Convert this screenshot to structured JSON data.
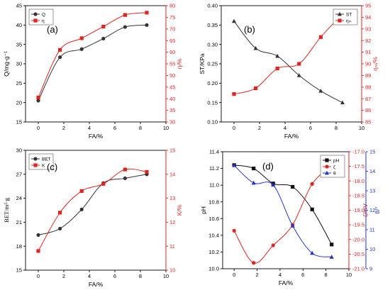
{
  "chart_data": [
    {
      "type": "line",
      "panel_label": "(a)",
      "xlabel": "FA/%",
      "xlim": [
        -1,
        10
      ],
      "xticks": [
        0,
        2,
        4,
        6,
        8,
        10
      ],
      "ylabel_left": "Q/mg·g⁻¹",
      "ylim_left": [
        15,
        45
      ],
      "yticks_left": [
        15,
        20,
        25,
        30,
        35,
        40,
        45
      ],
      "ylabel_right": "η/%",
      "ylim_right": [
        30,
        80
      ],
      "yticks_right": [
        30,
        35,
        40,
        45,
        50,
        55,
        60,
        65,
        70,
        75,
        80
      ],
      "legend_position": "top-left",
      "series": [
        {
          "name": "Q",
          "axis": "left",
          "color": "#333333",
          "marker": "circle",
          "x": [
            0,
            1.7,
            3.4,
            5.1,
            6.8,
            8.5
          ],
          "y": [
            20.5,
            31.7,
            33.8,
            36.5,
            39.5,
            40.0
          ]
        },
        {
          "name": "η",
          "axis": "right",
          "color": "#e0241f",
          "marker": "square",
          "x": [
            0,
            1.7,
            3.4,
            5.1,
            6.8,
            8.5
          ],
          "y": [
            40.5,
            61.0,
            66.0,
            71.0,
            76.0,
            77.0
          ]
        }
      ]
    },
    {
      "type": "line",
      "panel_label": "(b)",
      "xlabel": "FA/%",
      "xlim": [
        -1,
        10
      ],
      "xticks": [
        0,
        2,
        4,
        6,
        8,
        10
      ],
      "ylabel_left": "ST/KPa",
      "ylim_left": [
        0.1,
        0.4
      ],
      "yticks_left": [
        "0.10",
        "0.15",
        "0.20",
        "0.25",
        "0.30",
        "0.35",
        "0.40"
      ],
      "ylabel_right": "ηₘ/%",
      "ylim_right": [
        85,
        95
      ],
      "yticks_right": [
        85,
        86,
        87,
        88,
        89,
        90,
        91,
        92,
        93,
        94,
        95
      ],
      "legend_position": "top-right",
      "series": [
        {
          "name": "ST",
          "axis": "left",
          "color": "#333333",
          "marker": "triangle",
          "x": [
            0,
            1.7,
            3.4,
            5.1,
            6.8,
            8.5
          ],
          "y": [
            0.36,
            0.29,
            0.27,
            0.22,
            0.18,
            0.15
          ]
        },
        {
          "name": "ηₘ",
          "axis": "right",
          "color": "#e0241f",
          "marker": "square",
          "x": [
            0,
            1.7,
            3.4,
            5.1,
            6.8,
            8.5
          ],
          "y": [
            87.4,
            87.9,
            89.6,
            90.0,
            92.3,
            94.3
          ]
        }
      ]
    },
    {
      "type": "line",
      "panel_label": "(c)",
      "xlabel": "FA/%",
      "xlim": [
        -1,
        10
      ],
      "xticks": [
        0,
        2,
        4,
        6,
        8,
        10
      ],
      "ylabel_left": "BET/m²·g",
      "ylim_left": [
        15,
        30
      ],
      "yticks_left": [
        15,
        18,
        21,
        24,
        27,
        30
      ],
      "ylabel_right": "K/%",
      "ylim_right": [
        10,
        15
      ],
      "yticks_right": [
        10,
        11,
        12,
        13,
        14,
        15
      ],
      "legend_position": "top-left",
      "series": [
        {
          "name": "BET",
          "axis": "left",
          "color": "#333333",
          "marker": "circle",
          "x": [
            0,
            1.7,
            3.4,
            5.1,
            6.8,
            8.5
          ],
          "y": [
            19.4,
            20.2,
            22.6,
            25.9,
            26.5,
            27.0
          ]
        },
        {
          "name": "K",
          "axis": "right",
          "color": "#e0241f",
          "marker": "square",
          "x": [
            0,
            1.7,
            3.4,
            5.1,
            6.8,
            8.5
          ],
          "y": [
            10.8,
            12.4,
            13.3,
            13.6,
            14.2,
            14.1
          ]
        }
      ]
    },
    {
      "type": "line",
      "panel_label": "(d)",
      "xlabel": "FA/%",
      "xlim": [
        -1,
        10
      ],
      "xticks": [
        0,
        2,
        4,
        6,
        8,
        10
      ],
      "ylabel_left": "pH",
      "ylim_left": [
        10.0,
        11.4
      ],
      "yticks_left": [
        "10.0",
        "10.2",
        "10.4",
        "10.6",
        "10.8",
        "11.0",
        "11.2",
        "11.4"
      ],
      "ylabel_right1": "ζ/mV",
      "ylim_right1": [
        -21.0,
        -17.0
      ],
      "yticks_right1": [
        "-21.0",
        "-20.5",
        "-20.0",
        "-19.5",
        "-19.0",
        "-18.5",
        "-18.0",
        "-17.5",
        "-17.0"
      ],
      "ylabel_right2": "θ/°",
      "ylim_right2": [
        9,
        15
      ],
      "yticks_right2": [
        9,
        10,
        11,
        12,
        13,
        14,
        15
      ],
      "legend_position": "top-right",
      "series": [
        {
          "name": "pH",
          "axis": "left",
          "color": "#111111",
          "marker": "square",
          "x": [
            0,
            1.7,
            3.4,
            5.1,
            6.8,
            8.5
          ],
          "y": [
            11.24,
            11.2,
            11.02,
            10.98,
            10.71,
            10.29
          ]
        },
        {
          "name": "ζ",
          "axis": "right1",
          "color": "#e0241f",
          "marker": "circle",
          "x": [
            0,
            1.7,
            3.4,
            5.1,
            6.8,
            8.5
          ],
          "y": [
            -19.7,
            -20.8,
            -20.2,
            -19.5,
            -18.1,
            -17.5
          ]
        },
        {
          "name": "θ",
          "axis": "right2",
          "color": "#2233cc",
          "marker": "triangle",
          "x": [
            0,
            1.7,
            3.4,
            5.1,
            6.8,
            8.5
          ],
          "y": [
            14.3,
            13.4,
            13.3,
            11.2,
            9.8,
            9.6
          ]
        }
      ]
    }
  ]
}
